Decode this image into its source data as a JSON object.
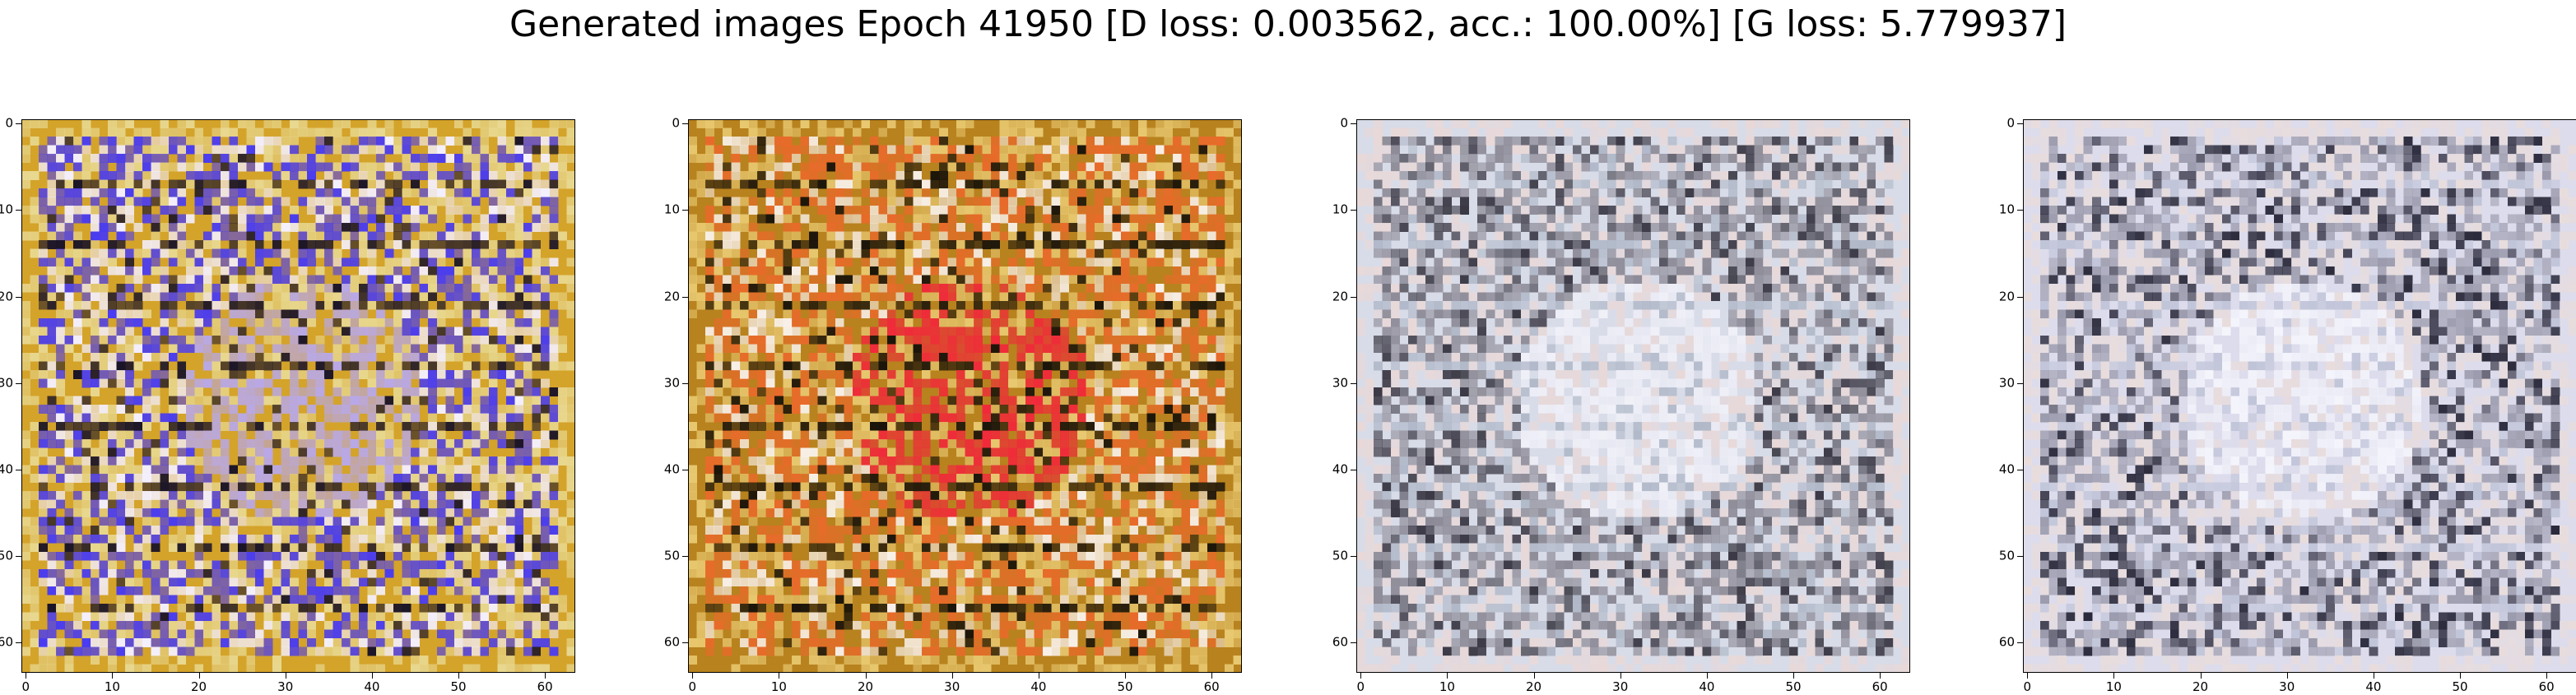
{
  "figure": {
    "title": "Generated images Epoch 41950 [D loss: 0.003562, acc.: 100.00%] [G loss: 5.779937]"
  },
  "axes": {
    "ticks": [
      "0",
      "10",
      "20",
      "30",
      "40",
      "50",
      "60"
    ],
    "tick_values": [
      0,
      10,
      20,
      30,
      40,
      50,
      60
    ],
    "range": [
      -0.5,
      63.5
    ]
  },
  "panels": [
    {
      "name": "generated-image-1",
      "palette": [
        "#d4a32a",
        "#4a3cf0",
        "#b8a8e8",
        "#f4f0ff",
        "#1a1428",
        "#e8d890"
      ]
    },
    {
      "name": "generated-image-2",
      "palette": [
        "#b8821e",
        "#e86a2a",
        "#f02a3a",
        "#f8f0e8",
        "#1a140a",
        "#e8c870"
      ]
    },
    {
      "name": "generated-image-3",
      "palette": [
        "#d8dce8",
        "#8c8a96",
        "#f0f0f8",
        "#3a3844",
        "#b0b8c8",
        "#e8d8d8"
      ]
    },
    {
      "name": "generated-image-4",
      "palette": [
        "#dcdcec",
        "#9a9aac",
        "#f4f4fc",
        "#2a2a3c",
        "#c0c4d8",
        "#e8dcdc"
      ]
    }
  ]
}
